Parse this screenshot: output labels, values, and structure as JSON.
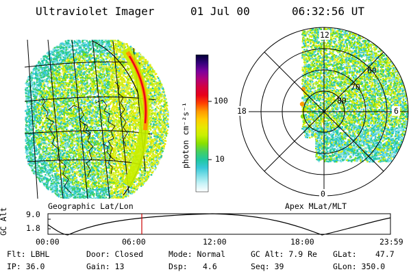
{
  "header": {
    "instrument": "Ultraviolet Imager",
    "date": "01 Jul 00",
    "time": "06:32:56 UT"
  },
  "geo_panel": {
    "label": "Geographic Lat/Lon"
  },
  "polar_panel": {
    "label": "Apex MLat/MLT",
    "mlt_labels": {
      "top": "12",
      "left": "18",
      "right": "6",
      "bottom": "0"
    },
    "mlat_labels": [
      "60",
      "70",
      "80"
    ]
  },
  "colorbar": {
    "unit_label": "photon cm⁻²s⁻¹",
    "ticks": [
      "100",
      "10"
    ],
    "colors": [
      "#000033",
      "#33007a",
      "#7a009e",
      "#b0007a",
      "#d40040",
      "#e8001a",
      "#ff4000",
      "#ff9900",
      "#ffcc00",
      "#e8e800",
      "#c8f000",
      "#88e000",
      "#44d060",
      "#20c8a0",
      "#38c8d8",
      "#80e0e8",
      "#c8f4f8",
      "#ffffff"
    ]
  },
  "orbit": {
    "y_label": "GC Alt",
    "y_ticks": [
      "9.0",
      "1.8"
    ],
    "x_ticks": [
      "00:00",
      "06:00",
      "12:00",
      "18:00",
      "23:59"
    ],
    "current_fraction": 0.274,
    "cursor_color": "#cc0000"
  },
  "status": {
    "flt": "Flt: LBHL",
    "ip": "IP: 36.0",
    "door": "Door: Closed",
    "gain": "Gain: 13",
    "mode": "Mode: Normal",
    "dsp_label": "Dsp:",
    "dsp_value": "4.6",
    "gc_alt": "GC Alt: 7.9 Re",
    "seq": "Seq: 39",
    "glat_label": "GLat:",
    "glat_value": "47.7",
    "glon": "GLon: 350.0"
  }
}
